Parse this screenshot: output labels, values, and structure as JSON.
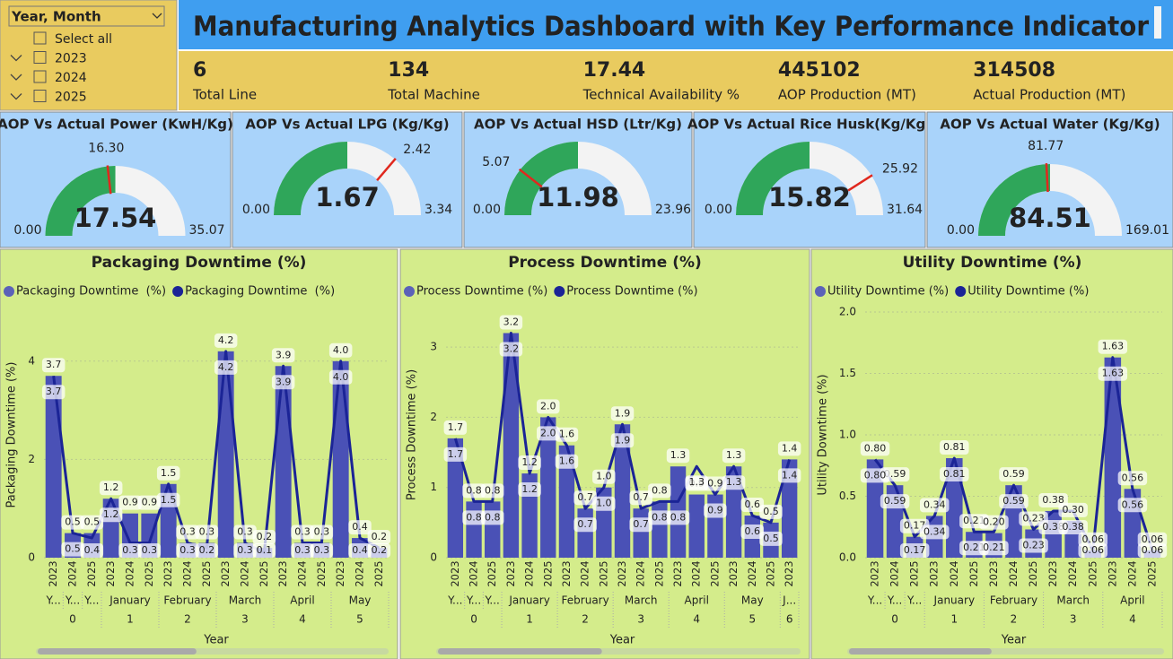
{
  "slicer": {
    "title": "Year, Month",
    "items": [
      "Select all",
      "2023",
      "2024",
      "2025"
    ]
  },
  "title": "Manufacturing Analytics Dashboard with Key Performance Indicator",
  "kpis": [
    {
      "value": 6,
      "label": "Total Line"
    },
    {
      "value": 134,
      "label": "Total Machine"
    },
    {
      "value": 17.44,
      "label": "Technical Availability %"
    },
    {
      "value": 445102,
      "label": "AOP Production (MT)"
    },
    {
      "value": 314508,
      "label": "Actual Production (MT)"
    }
  ],
  "chart_data": [
    {
      "type": "gauge",
      "title": "AOP Vs Actual Power (KwH/Kg)",
      "value": 17.54,
      "target": {
        "value": 16.3,
        "label": "16.30"
      },
      "min": {
        "value": 0,
        "label": "0.00"
      },
      "max": 35.07,
      "color": "#2fa65a",
      "target_color": "#e0281e"
    },
    {
      "type": "gauge",
      "title": "AOP Vs Actual LPG (Kg/Kg)",
      "value": 1.67,
      "target": 2.42,
      "min": {
        "value": 0,
        "label": "0.00"
      },
      "max": 3.34,
      "color": "#2fa65a",
      "target_color": "#e0281e"
    },
    {
      "type": "gauge",
      "title": "AOP Vs Actual HSD (Ltr/Kg)",
      "value": 11.98,
      "target": 5.07,
      "min": {
        "value": 0,
        "label": "0.00"
      },
      "max": 23.96,
      "color": "#2fa65a",
      "target_color": "#e0281e"
    },
    {
      "type": "gauge",
      "title": "AOP Vs Actual Rice Husk(Kg/Kg)",
      "value": 15.82,
      "target": 25.92,
      "min": {
        "value": 0,
        "label": "0.00"
      },
      "max": 31.64,
      "color": "#2fa65a",
      "target_color": "#e0281e"
    },
    {
      "type": "gauge",
      "title": "AOP Vs Actual Water (Kg/Kg)",
      "value": 84.51,
      "target": 81.77,
      "min": {
        "value": 0,
        "label": "0.00"
      },
      "max": 169.01,
      "color": "#2fa65a",
      "target_color": "#e0281e"
    },
    {
      "type": "combo",
      "title": "Packaging Downtime (%)",
      "x_label": "Year",
      "y_label": "Packaging Downtime (%)",
      "categories": [
        "2023",
        "2024",
        "2025",
        "2023",
        "2024",
        "2025",
        "2023",
        "2024",
        "2025",
        "2023",
        "2024",
        "2025",
        "2023",
        "2024",
        "2025",
        "2023",
        "2024",
        "2025"
      ],
      "months": [
        "Y...",
        "Y...",
        "Y...",
        "January",
        null,
        null,
        "February",
        null,
        null,
        "March",
        null,
        null,
        "April",
        null,
        null,
        "May",
        null,
        null
      ],
      "groups": [
        0,
        null,
        null,
        1,
        null,
        null,
        2,
        null,
        null,
        3,
        null,
        null,
        4,
        null,
        null,
        5,
        null,
        null
      ],
      "ylim": [
        0,
        5
      ],
      "yticks": [
        0,
        2,
        4
      ],
      "grid": true,
      "series": [
        {
          "name": "Packaging Downtime  (%)",
          "type": "bar",
          "color": "#4a51b6",
          "values": [
            3.7,
            0.5,
            0.5,
            1.2,
            0.9,
            0.9,
            1.5,
            0.3,
            0.3,
            4.2,
            0.3,
            0.2,
            3.9,
            0.3,
            0.3,
            4.0,
            0.4,
            0.2
          ],
          "value_labels": [
            "3.7",
            "0.5",
            "0.5",
            "1.2",
            "0.9",
            "0.9",
            "1.5",
            "0.3",
            "0.3",
            "4.2",
            "0.3",
            "0.2",
            "3.9",
            "0.3",
            "0.3",
            "4.0",
            "0.4",
            "0.2"
          ]
        },
        {
          "name": "Packaging Downtime  (%)",
          "type": "line",
          "color": "#1b2496",
          "values": [
            3.7,
            0.5,
            0.4,
            1.2,
            0.3,
            0.3,
            1.5,
            0.3,
            0.2,
            4.2,
            0.3,
            0.1,
            3.9,
            0.3,
            0.3,
            4.0,
            0.4,
            0.2
          ],
          "value_labels": [
            "3.7",
            "0.5",
            "0.4",
            "1.2",
            "0.3",
            "0.3",
            "1.5",
            "0.3",
            "0.2",
            "4.2",
            "0.3",
            "0.1",
            "3.9",
            "0.3",
            "0.3",
            "4.0",
            "0.4",
            "0.2"
          ]
        }
      ]
    },
    {
      "type": "combo",
      "title": "Process Downtime (%)",
      "x_label": "Year",
      "y_label": "Process Downtime (%)",
      "categories": [
        "2023",
        "2024",
        "2025",
        "2023",
        "2024",
        "2025",
        "2023",
        "2024",
        "2025",
        "2023",
        "2024",
        "2025",
        "2023",
        "2024",
        "2025",
        "2023",
        "2024",
        "2025",
        "2023"
      ],
      "months": [
        "Y...",
        "Y...",
        "Y...",
        "January",
        null,
        null,
        "February",
        null,
        null,
        "March",
        null,
        null,
        "April",
        null,
        null,
        "May",
        null,
        null,
        "J..."
      ],
      "groups": [
        0,
        null,
        null,
        1,
        null,
        null,
        2,
        null,
        null,
        3,
        null,
        null,
        4,
        null,
        null,
        5,
        null,
        null,
        6
      ],
      "ylim": [
        0,
        3.5
      ],
      "yticks": [
        0,
        1,
        2,
        3
      ],
      "grid": true,
      "series": [
        {
          "name": "Process Downtime (%)",
          "type": "bar",
          "color": "#4a51b6",
          "values": [
            1.7,
            0.8,
            0.8,
            3.2,
            1.2,
            2.0,
            1.6,
            0.7,
            1.0,
            1.9,
            0.7,
            0.8,
            1.3,
            0.9,
            0.9,
            1.3,
            0.6,
            0.5,
            1.4
          ],
          "value_labels": [
            "1.7",
            "0.8",
            "0.8",
            "3.2",
            "1.2",
            "2.0",
            "1.6",
            "0.7",
            "1.0",
            "1.9",
            "0.7",
            "0.8",
            "1.3",
            "0.9",
            "0.9",
            "1.3",
            "0.6",
            "0.5",
            "1.4"
          ]
        },
        {
          "name": "Process Downtime (%)",
          "type": "line",
          "color": "#1b2496",
          "values": [
            1.7,
            0.8,
            0.8,
            3.2,
            1.2,
            2.0,
            1.6,
            0.7,
            1.0,
            1.9,
            0.7,
            0.8,
            0.8,
            1.3,
            0.9,
            1.3,
            0.6,
            0.5,
            1.4
          ],
          "value_labels": [
            "1.7",
            "0.8",
            "0.8",
            "3.2",
            "1.2",
            "2.0",
            "1.6",
            "0.7",
            "1.0",
            "1.9",
            "0.7",
            "0.8",
            "0.8",
            "1.3",
            "0.9",
            "1.3",
            "0.6",
            "0.5",
            "1.4"
          ]
        }
      ]
    },
    {
      "type": "combo",
      "title": "Utility Downtime (%)",
      "x_label": "Year",
      "y_label": "Utility Downtime (%)",
      "categories": [
        "2023",
        "2024",
        "2025",
        "2023",
        "2024",
        "2025",
        "2023",
        "2024",
        "2025",
        "2023",
        "2024",
        "2025",
        "2023",
        "2024",
        "2025"
      ],
      "months": [
        "Y...",
        "Y...",
        "Y...",
        "January",
        null,
        null,
        "February",
        null,
        null,
        "March",
        null,
        null,
        "April",
        null,
        null
      ],
      "groups": [
        0,
        null,
        null,
        1,
        null,
        null,
        2,
        null,
        null,
        3,
        null,
        null,
        4,
        null,
        null
      ],
      "ylim": [
        0,
        2
      ],
      "yticks": [
        {
          "value": 0,
          "label": "0.0"
        },
        0.5,
        {
          "value": 1,
          "label": "1.0"
        },
        1.5,
        {
          "value": 2,
          "label": "2.0"
        }
      ],
      "grid": true,
      "series": [
        {
          "name": "Utility Downtime (%)",
          "type": "bar",
          "color": "#4a51b6",
          "values": [
            0.8,
            0.59,
            0.17,
            0.34,
            0.81,
            0.21,
            0.2,
            0.59,
            0.23,
            0.38,
            0.3,
            0.06,
            1.63,
            0.56,
            0.06
          ],
          "value_labels": [
            "0.80",
            "0.59",
            "0.17",
            "0.34",
            "0.81",
            "0.21",
            "0.20",
            "0.59",
            "0.23",
            "0.38",
            "0.30",
            "0.06",
            "1.63",
            "0.56",
            "0.06"
          ]
        },
        {
          "name": "Utility Downtime (%)",
          "type": "line",
          "color": "#1b2496",
          "values": [
            0.8,
            0.59,
            0.17,
            0.34,
            0.81,
            0.21,
            0.21,
            0.59,
            0.23,
            0.38,
            0.38,
            0.06,
            1.63,
            0.56,
            0.06
          ],
          "value_labels": [
            "0.80",
            "0.59",
            "0.17",
            "0.34",
            "0.81",
            "0.21",
            "0.21",
            "0.59",
            "0.23",
            "0.38",
            "0.38",
            "0.06",
            "1.63",
            "0.56",
            "0.06"
          ]
        }
      ]
    }
  ]
}
